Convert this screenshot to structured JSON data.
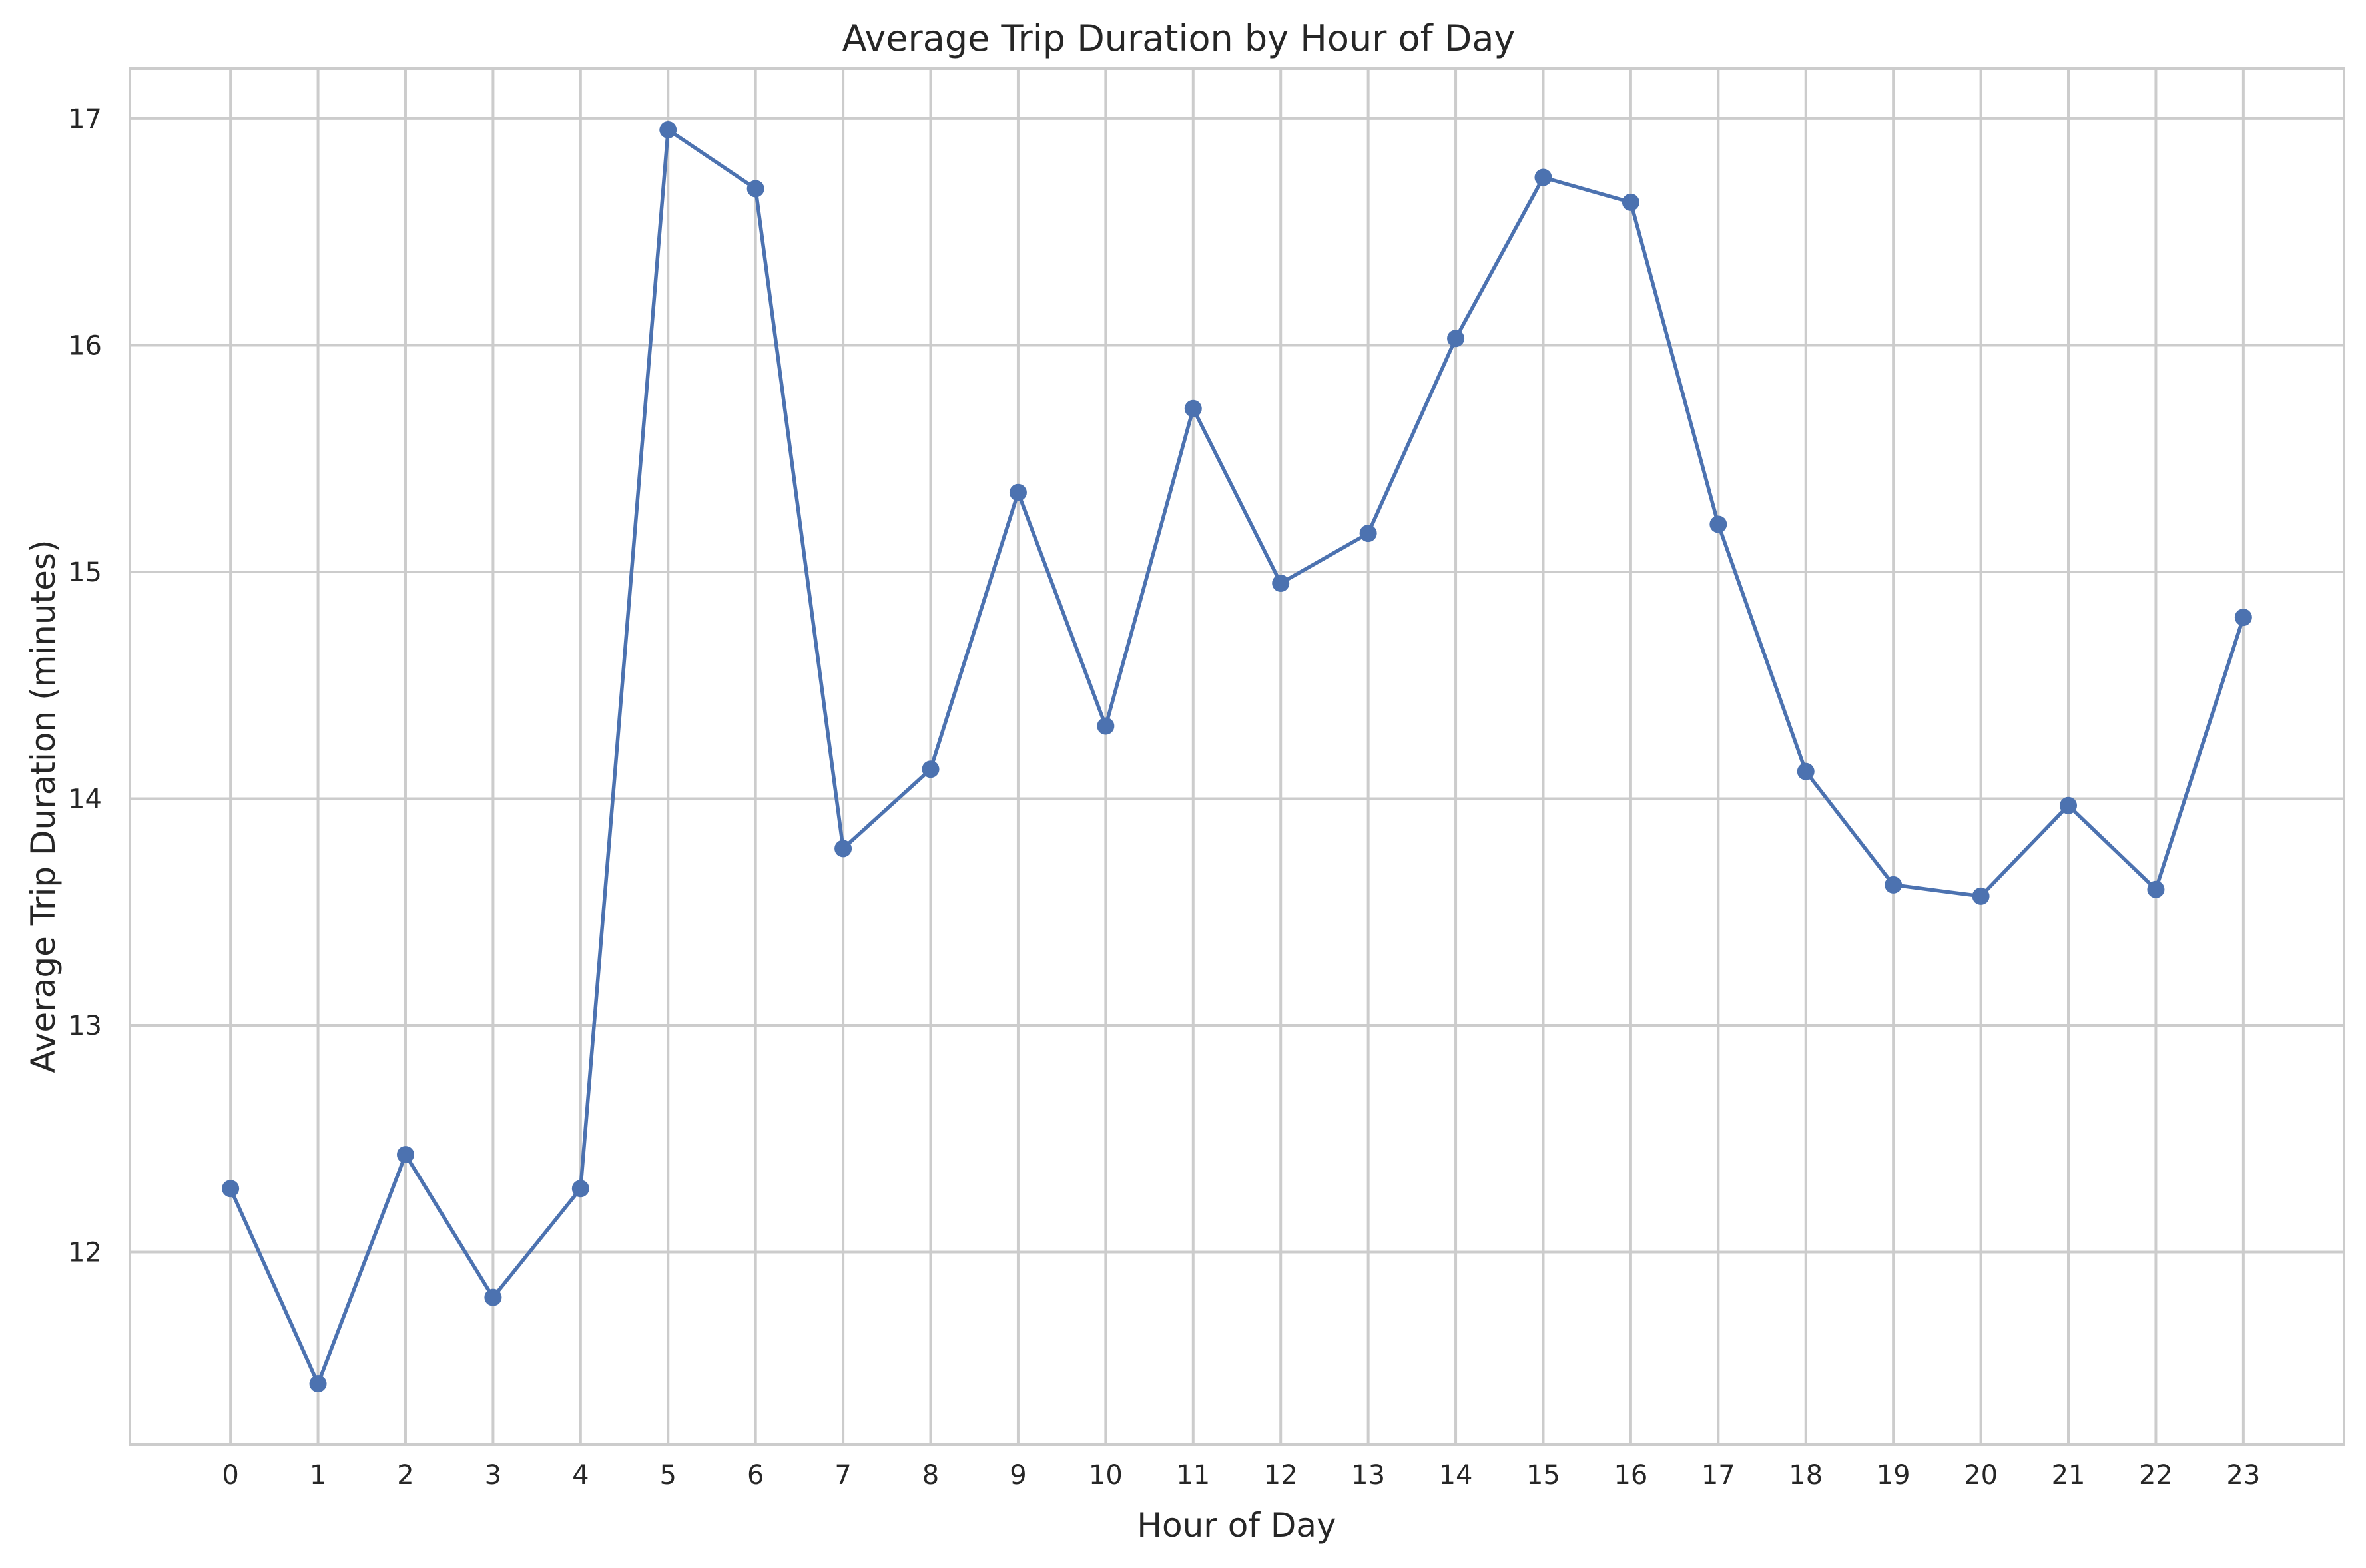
{
  "chart_data": {
    "type": "line",
    "title": "Average Trip Duration by Hour of Day",
    "xlabel": "Hour of Day",
    "ylabel": "Average Trip Duration (minutes)",
    "x": [
      0,
      1,
      2,
      3,
      4,
      5,
      6,
      7,
      8,
      9,
      10,
      11,
      12,
      13,
      14,
      15,
      16,
      17,
      18,
      19,
      20,
      21,
      22,
      23
    ],
    "x_tick_labels": [
      "0",
      "1",
      "2",
      "3",
      "4",
      "5",
      "6",
      "7",
      "8",
      "9",
      "10",
      "11",
      "12",
      "13",
      "14",
      "15",
      "16",
      "17",
      "18",
      "19",
      "20",
      "21",
      "22",
      "23"
    ],
    "y_ticks": [
      12,
      13,
      14,
      15,
      16,
      17
    ],
    "y_tick_labels": [
      "12",
      "13",
      "14",
      "15",
      "16",
      "17"
    ],
    "xlim": [
      -1.15,
      24.15
    ],
    "ylim": [
      11.15,
      17.22
    ],
    "grid": true,
    "legend": "none",
    "series": [
      {
        "values": [
          12.28,
          11.42,
          12.43,
          11.8,
          12.28,
          16.95,
          16.69,
          13.78,
          14.13,
          15.35,
          14.32,
          15.72,
          14.95,
          15.17,
          16.03,
          16.74,
          16.63,
          15.21,
          14.12,
          13.62,
          13.57,
          13.97,
          13.6,
          14.8
        ],
        "color": "#4c72b0",
        "marker": "circle"
      }
    ]
  }
}
